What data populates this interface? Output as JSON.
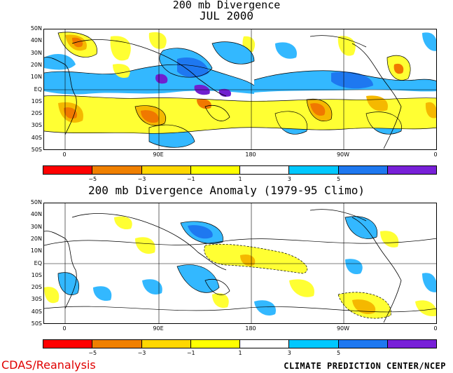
{
  "top": {
    "title1": "200 mb Divergence",
    "title2": "JUL 2000"
  },
  "bottom": {
    "title": "200 mb Divergence Anomaly (1979-95 Climo)"
  },
  "lat_labels": [
    "50N",
    "40N",
    "30N",
    "20N",
    "10N",
    "EQ",
    "10S",
    "20S",
    "30S",
    "40S",
    "50S"
  ],
  "lon_labels": [
    "0",
    "90E",
    "180",
    "90W",
    "0"
  ],
  "colorbar": {
    "colors": [
      "#ff0000",
      "#f08000",
      "#ffd700",
      "#ffff00",
      "#ffffff",
      "#00c8ff",
      "#1e78f0",
      "#7820d8"
    ],
    "labels": [
      "−5",
      "−3",
      "−1",
      "1",
      "3",
      "5"
    ]
  },
  "palette": {
    "neg_strong": "#f07800",
    "neg_med": "#f5b800",
    "neg_weak": "#ffff33",
    "pos_weak": "#33b8ff",
    "pos_med": "#1e78f0",
    "pos_strong": "#7020d0"
  },
  "footer": {
    "left": "CDAS/Reanalysis",
    "right": "CLIMATE PREDICTION CENTER/NCEP"
  }
}
